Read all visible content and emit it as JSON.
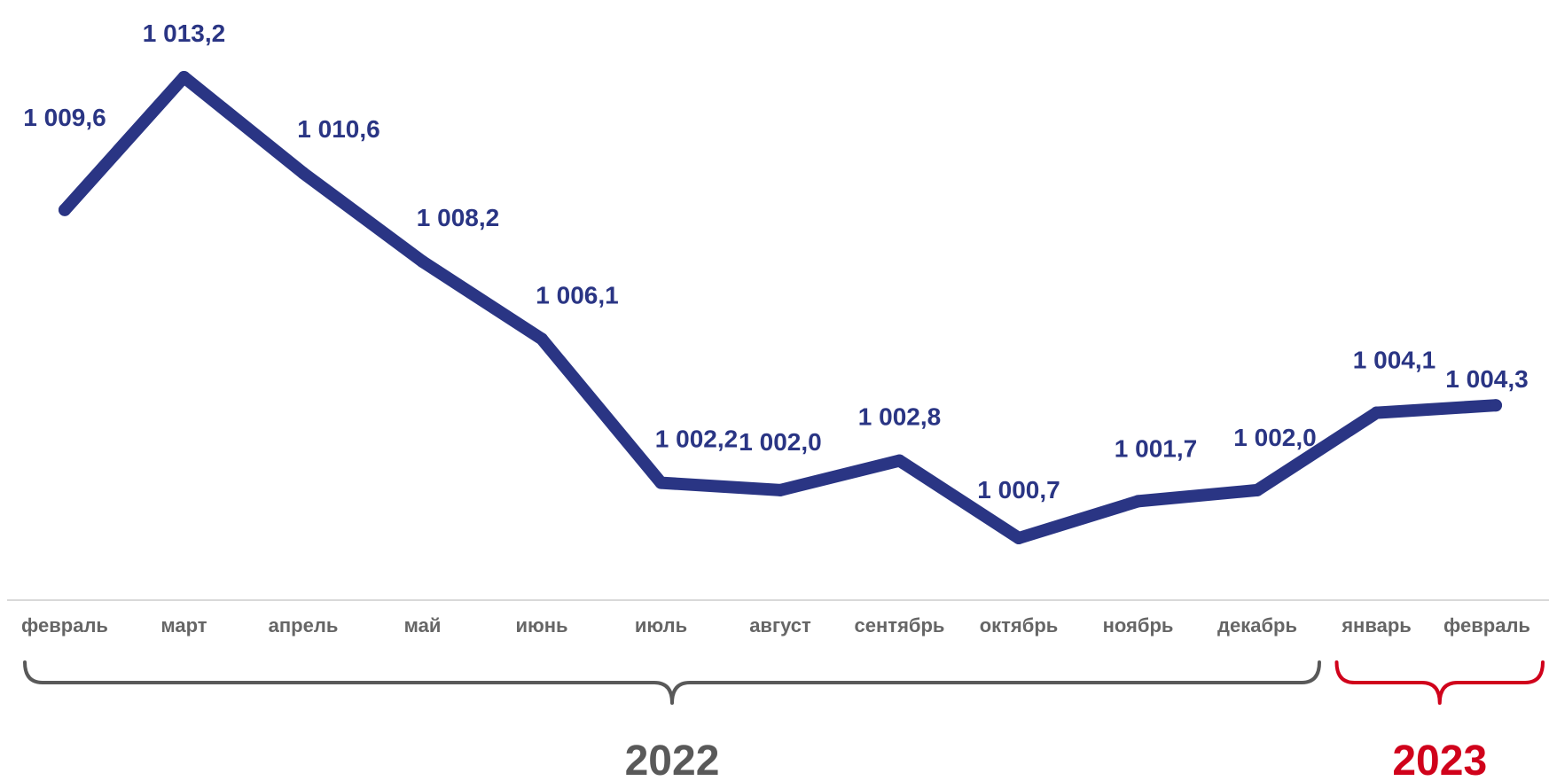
{
  "chart_data": {
    "type": "line",
    "categories": [
      "февраль",
      "март",
      "апрель",
      "май",
      "июнь",
      "июль",
      "август",
      "сентябрь",
      "октябрь",
      "ноябрь",
      "декабрь",
      "январь",
      "февраль"
    ],
    "values": [
      1009.6,
      1013.2,
      1010.6,
      1008.2,
      1006.1,
      1002.2,
      1002.0,
      1002.8,
      1000.7,
      1001.7,
      1002.0,
      1004.1,
      1004.3
    ],
    "value_labels": [
      "1 009,6",
      "1 013,2",
      "1 010,6",
      "1 008,2",
      "1 006,1",
      "1 002,2",
      "1 002,0",
      "1 002,8",
      "1 000,7",
      "1 001,7",
      "1 002,0",
      "1 004,1",
      "1 004,3"
    ],
    "groups": [
      {
        "label": "2022",
        "from_index": 0,
        "to_index": 10,
        "color": "#595959"
      },
      {
        "label": "2023",
        "from_index": 11,
        "to_index": 12,
        "color": "#d0021b"
      }
    ],
    "line_color": "#2a3584",
    "axis_color": "#d9d9d9",
    "grid": false,
    "legend": "none"
  }
}
